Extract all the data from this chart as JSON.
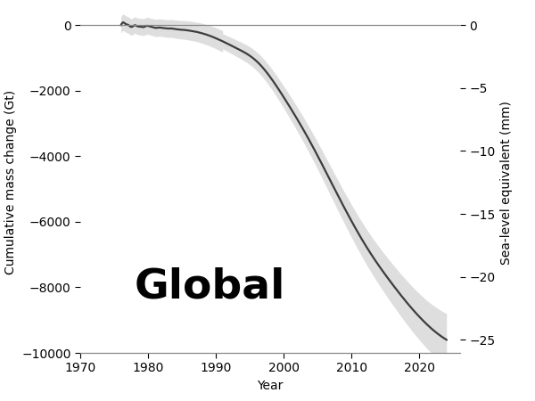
{
  "title": "Global",
  "xlabel": "Year",
  "ylabel_left": "Cumulative mass change (Gt)",
  "ylabel_right": "Sea-level equivalent (mm)",
  "xlim": [
    1970,
    2026
  ],
  "ylim_left": [
    -10000,
    400
  ],
  "ylim_right": [
    -26.04,
    1.04
  ],
  "left_ticks": [
    0,
    -2000,
    -4000,
    -6000,
    -8000,
    -10000
  ],
  "right_ticks": [
    0,
    -5,
    -10,
    -15,
    -20,
    -25
  ],
  "xticks": [
    1970,
    1980,
    1990,
    2000,
    2010,
    2020
  ],
  "line_color": "#3d3d3d",
  "band_color": "#c8c8c8",
  "background_color": "#ffffff",
  "zero_line_color": "#888888",
  "title_fontsize": 34,
  "title_fontweight": "bold",
  "axis_fontsize": 10,
  "tick_fontsize": 10,
  "line_width": 1.6,
  "band_alpha": 0.6,
  "x_start": 1976,
  "x_end": 2024
}
